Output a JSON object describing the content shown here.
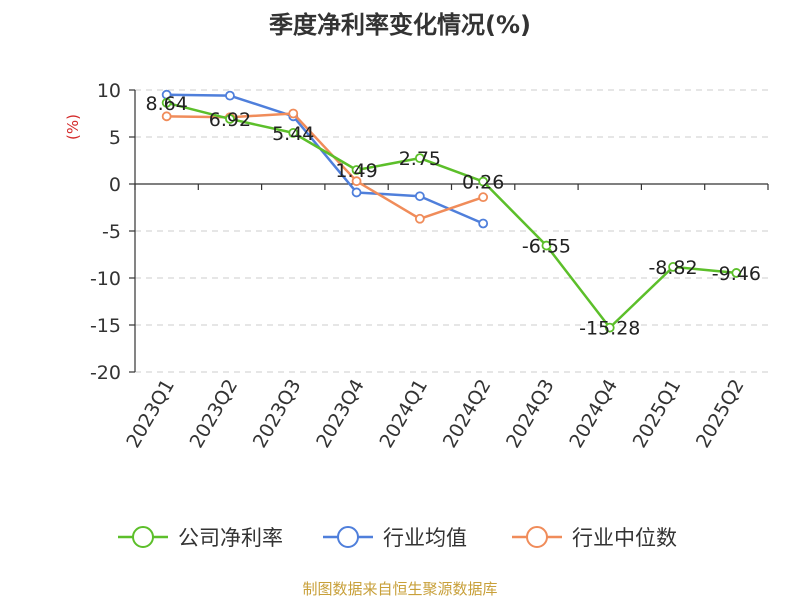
{
  "chart_data": {
    "type": "line",
    "title": "季度净利率变化情况(%)",
    "ylabel": "(%)",
    "xlabel": "",
    "categories": [
      "2023Q1",
      "2023Q2",
      "2023Q3",
      "2023Q4",
      "2024Q1",
      "2024Q2",
      "2024Q3",
      "2024Q4",
      "2025Q1",
      "2025Q2"
    ],
    "ylim": [
      -20,
      10
    ],
    "yticks": [
      10,
      5,
      0,
      -5,
      -10,
      -15,
      -20
    ],
    "grid": true,
    "legend_position": "bottom",
    "series": [
      {
        "name": "公司净利率",
        "color": "#5cbf2a",
        "values": [
          8.64,
          6.92,
          5.44,
          1.49,
          2.75,
          0.26,
          -6.55,
          -15.28,
          -8.82,
          -9.46
        ],
        "labels": [
          "8.64",
          "6.92",
          "5.44",
          "1.49",
          "2.75",
          "0.26",
          "-6.55",
          "-15.28",
          "-8.82",
          "-9.46"
        ]
      },
      {
        "name": "行业均值",
        "color": "#4f7fdb",
        "values": [
          9.5,
          9.4,
          7.2,
          -0.9,
          -1.3,
          -4.2,
          null,
          null,
          null,
          null
        ]
      },
      {
        "name": "行业中位数",
        "color": "#f08c5a",
        "values": [
          7.2,
          7.1,
          7.5,
          0.3,
          -3.7,
          -1.4,
          null,
          null,
          null,
          null
        ]
      }
    ]
  },
  "footer": {
    "source": "制图数据来自恒生聚源数据库"
  }
}
